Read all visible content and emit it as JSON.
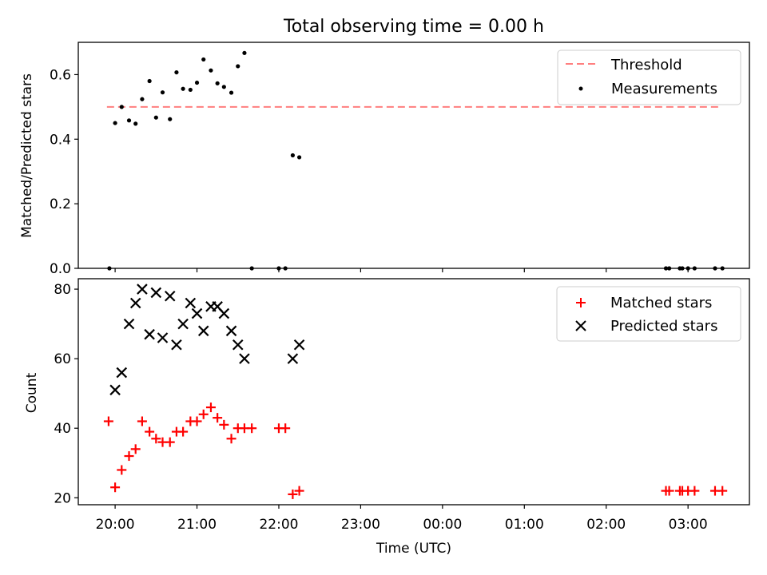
{
  "title": "Total observing time = 0.00 h",
  "chart_data": [
    {
      "type": "scatter",
      "ylabel": "Matched/Predicted stars",
      "ylim": [
        0,
        0.7
      ],
      "yticks": [
        "0.0",
        "0.2",
        "0.4",
        "0.6"
      ],
      "ytick_values": [
        0,
        0.2,
        0.4,
        0.6
      ],
      "xlim_hours": [
        19.55,
        27.75
      ],
      "legend_position": "top-right",
      "threshold": {
        "name": "Threshold",
        "y": 0.5,
        "x_start_hours": 19.9,
        "x_end_hours": 27.4,
        "color": "#ff7f7f"
      },
      "series": [
        {
          "name": "Measurements",
          "color": "#000000",
          "x_hours": [
            19.93,
            20.0,
            20.08,
            20.17,
            20.25,
            20.33,
            20.42,
            20.5,
            20.58,
            20.67,
            20.75,
            20.83,
            20.92,
            21.0,
            21.08,
            21.17,
            21.25,
            21.33,
            21.42,
            21.5,
            21.58,
            21.67,
            22.0,
            22.08,
            22.17,
            22.25,
            26.73,
            26.77,
            26.9,
            26.93,
            27.0,
            27.08,
            27.33,
            27.42
          ],
          "values": [
            0.0,
            0.45,
            0.5,
            0.458,
            0.448,
            0.524,
            0.58,
            0.467,
            0.545,
            0.462,
            0.607,
            0.556,
            0.553,
            0.575,
            0.647,
            0.613,
            0.573,
            0.562,
            0.544,
            0.626,
            0.667,
            0.0,
            0.0,
            0.0,
            0.35,
            0.344,
            0.0,
            0.0,
            0.0,
            0.0,
            0.0,
            0.0,
            0.0,
            0.0
          ]
        }
      ]
    },
    {
      "type": "scatter",
      "xlabel": "Time (UTC)",
      "ylabel": "Count",
      "ylim": [
        18,
        83
      ],
      "yticks": [
        "20",
        "40",
        "60",
        "80"
      ],
      "ytick_values": [
        20,
        40,
        60,
        80
      ],
      "xlim_hours": [
        19.55,
        27.75
      ],
      "xticks": [
        "20:00",
        "21:00",
        "22:00",
        "23:00",
        "00:00",
        "01:00",
        "02:00",
        "03:00"
      ],
      "xtick_hours": [
        20,
        21,
        22,
        23,
        24,
        25,
        26,
        27
      ],
      "legend_position": "top-right",
      "series": [
        {
          "name": "Matched stars",
          "color": "#ff0000",
          "marker": "+",
          "x_hours": [
            19.92,
            20.0,
            20.08,
            20.17,
            20.25,
            20.33,
            20.42,
            20.5,
            20.58,
            20.67,
            20.75,
            20.83,
            20.92,
            21.0,
            21.08,
            21.17,
            21.25,
            21.33,
            21.42,
            21.5,
            21.58,
            21.67,
            22.0,
            22.08,
            22.17,
            22.25,
            26.73,
            26.77,
            26.9,
            26.93,
            27.0,
            27.08,
            27.33,
            27.42
          ],
          "values": [
            42,
            23,
            28,
            32,
            34,
            42,
            39,
            37,
            36,
            36,
            39,
            39,
            42,
            42,
            44,
            46,
            43,
            41,
            37,
            40,
            40,
            40,
            40,
            40,
            21,
            22,
            22,
            22,
            22,
            22,
            22,
            22,
            22,
            22
          ]
        },
        {
          "name": "Predicted stars",
          "color": "#000000",
          "marker": "x",
          "x_hours": [
            20.0,
            20.08,
            20.17,
            20.25,
            20.33,
            20.42,
            20.5,
            20.58,
            20.67,
            20.75,
            20.83,
            20.92,
            21.0,
            21.08,
            21.17,
            21.25,
            21.33,
            21.42,
            21.5,
            21.58,
            22.17,
            22.25
          ],
          "values": [
            51,
            56,
            70,
            76,
            80,
            67,
            79,
            66,
            78,
            64,
            70,
            76,
            73,
            68,
            75,
            75,
            73,
            68,
            64,
            60,
            60,
            64
          ]
        }
      ]
    }
  ]
}
